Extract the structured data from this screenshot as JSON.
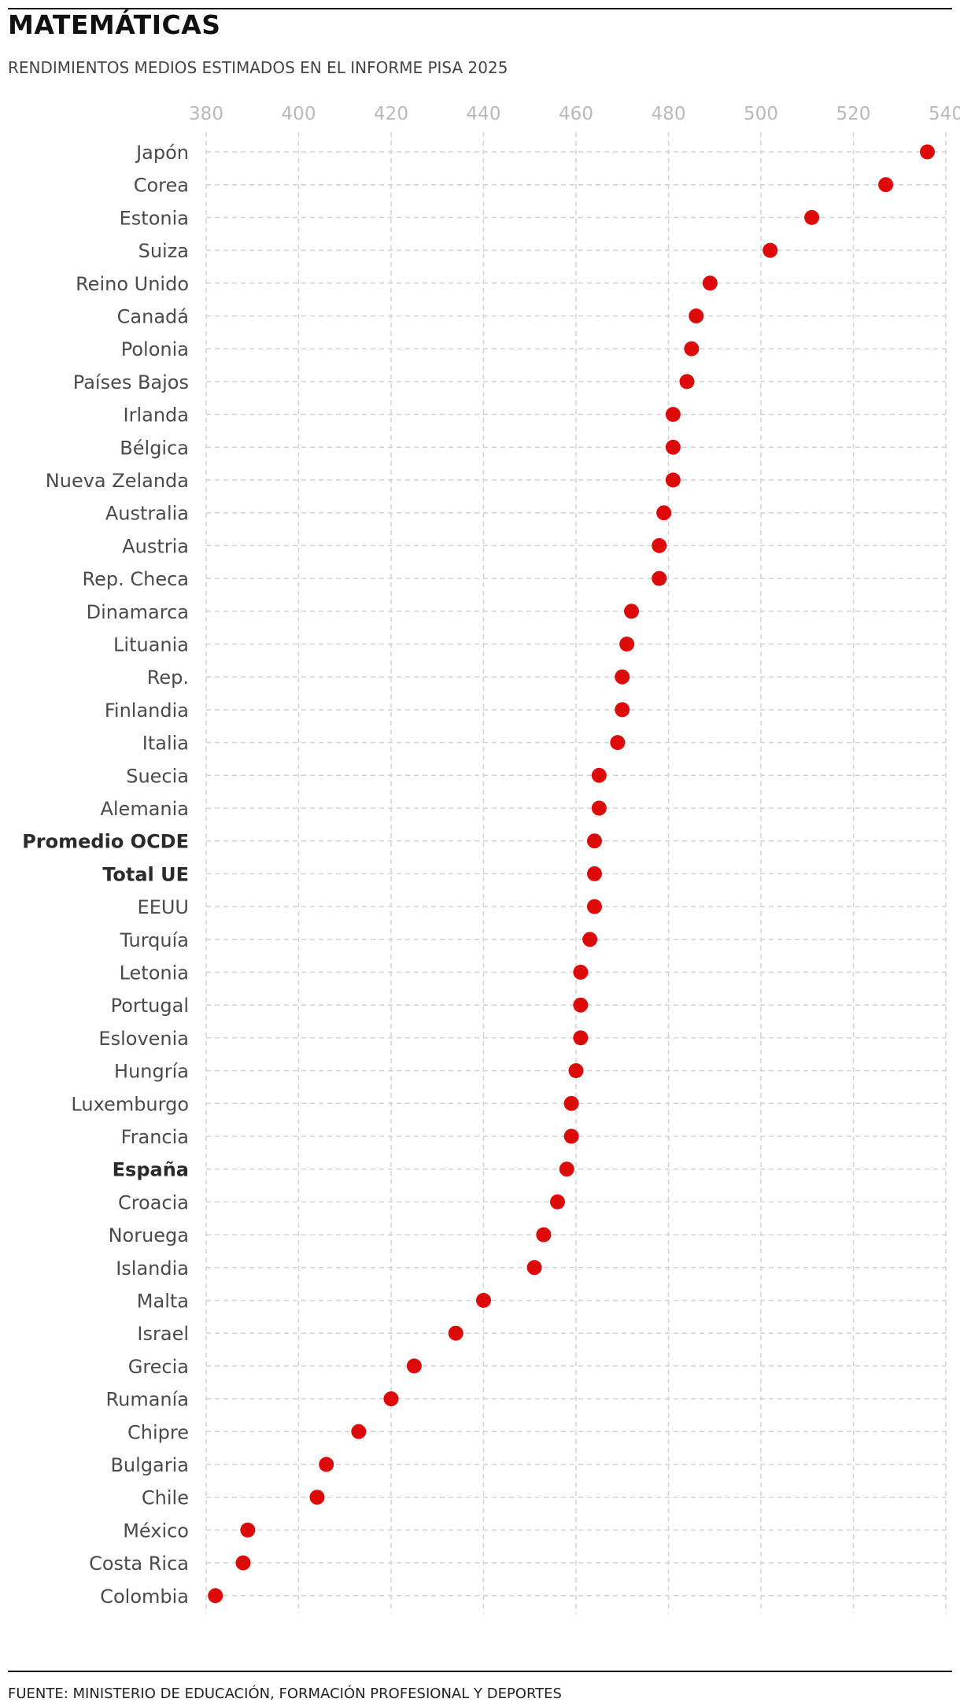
{
  "header": {
    "title": "MATEMÁTICAS",
    "subtitle": "RENDIMIENTOS MEDIOS ESTIMADOS EN EL INFORME PISA 2025"
  },
  "footer": {
    "source": "FUENTE: MINISTERIO DE EDUCACIÓN, FORMACIÓN PROFESIONAL Y DEPORTES"
  },
  "colors": {
    "dot": "#dd0a0a",
    "grid": "#d2d2d2",
    "tick_text": "#b9b9b9",
    "label_text": "#4a4a4a"
  },
  "chart_data": {
    "type": "scatter",
    "title": "MATEMÁTICAS",
    "subtitle": "RENDIMIENTOS MEDIOS ESTIMADOS EN EL INFORME PISA 2025",
    "xlabel": "",
    "ylabel": "",
    "x_axis_position": "top",
    "xlim": [
      380,
      540
    ],
    "xticks": [
      380,
      400,
      420,
      440,
      460,
      480,
      500,
      520,
      540
    ],
    "grid": true,
    "legend": "none",
    "bold_categories": [
      "Promedio OCDE",
      "Total UE",
      "España"
    ],
    "categories": [
      "Japón",
      "Corea",
      "Estonia",
      "Suiza",
      "Reino Unido",
      "Canadá",
      "Polonia",
      "Países Bajos",
      "Irlanda",
      "Bélgica",
      "Nueva Zelanda",
      "Australia",
      "Austria",
      "Rep. Checa",
      "Dinamarca",
      "Lituania",
      "Rep.",
      "Finlandia",
      "Italia",
      "Suecia",
      "Alemania",
      "Promedio OCDE",
      "Total UE",
      "EEUU",
      "Turquía",
      "Letonia",
      "Portugal",
      "Eslovenia",
      "Hungría",
      "Luxemburgo",
      "Francia",
      "España",
      "Croacia",
      "Noruega",
      "Islandia",
      "Malta",
      "Israel",
      "Grecia",
      "Rumanía",
      "Chipre",
      "Bulgaria",
      "Chile",
      "México",
      "Costa Rica",
      "Colombia"
    ],
    "values": [
      536,
      527,
      511,
      502,
      489,
      486,
      485,
      484,
      481,
      481,
      481,
      479,
      478,
      478,
      472,
      471,
      470,
      470,
      469,
      465,
      465,
      464,
      464,
      464,
      463,
      461,
      461,
      461,
      460,
      459,
      459,
      458,
      456,
      453,
      451,
      440,
      434,
      425,
      420,
      413,
      406,
      404,
      389,
      388,
      382
    ]
  }
}
